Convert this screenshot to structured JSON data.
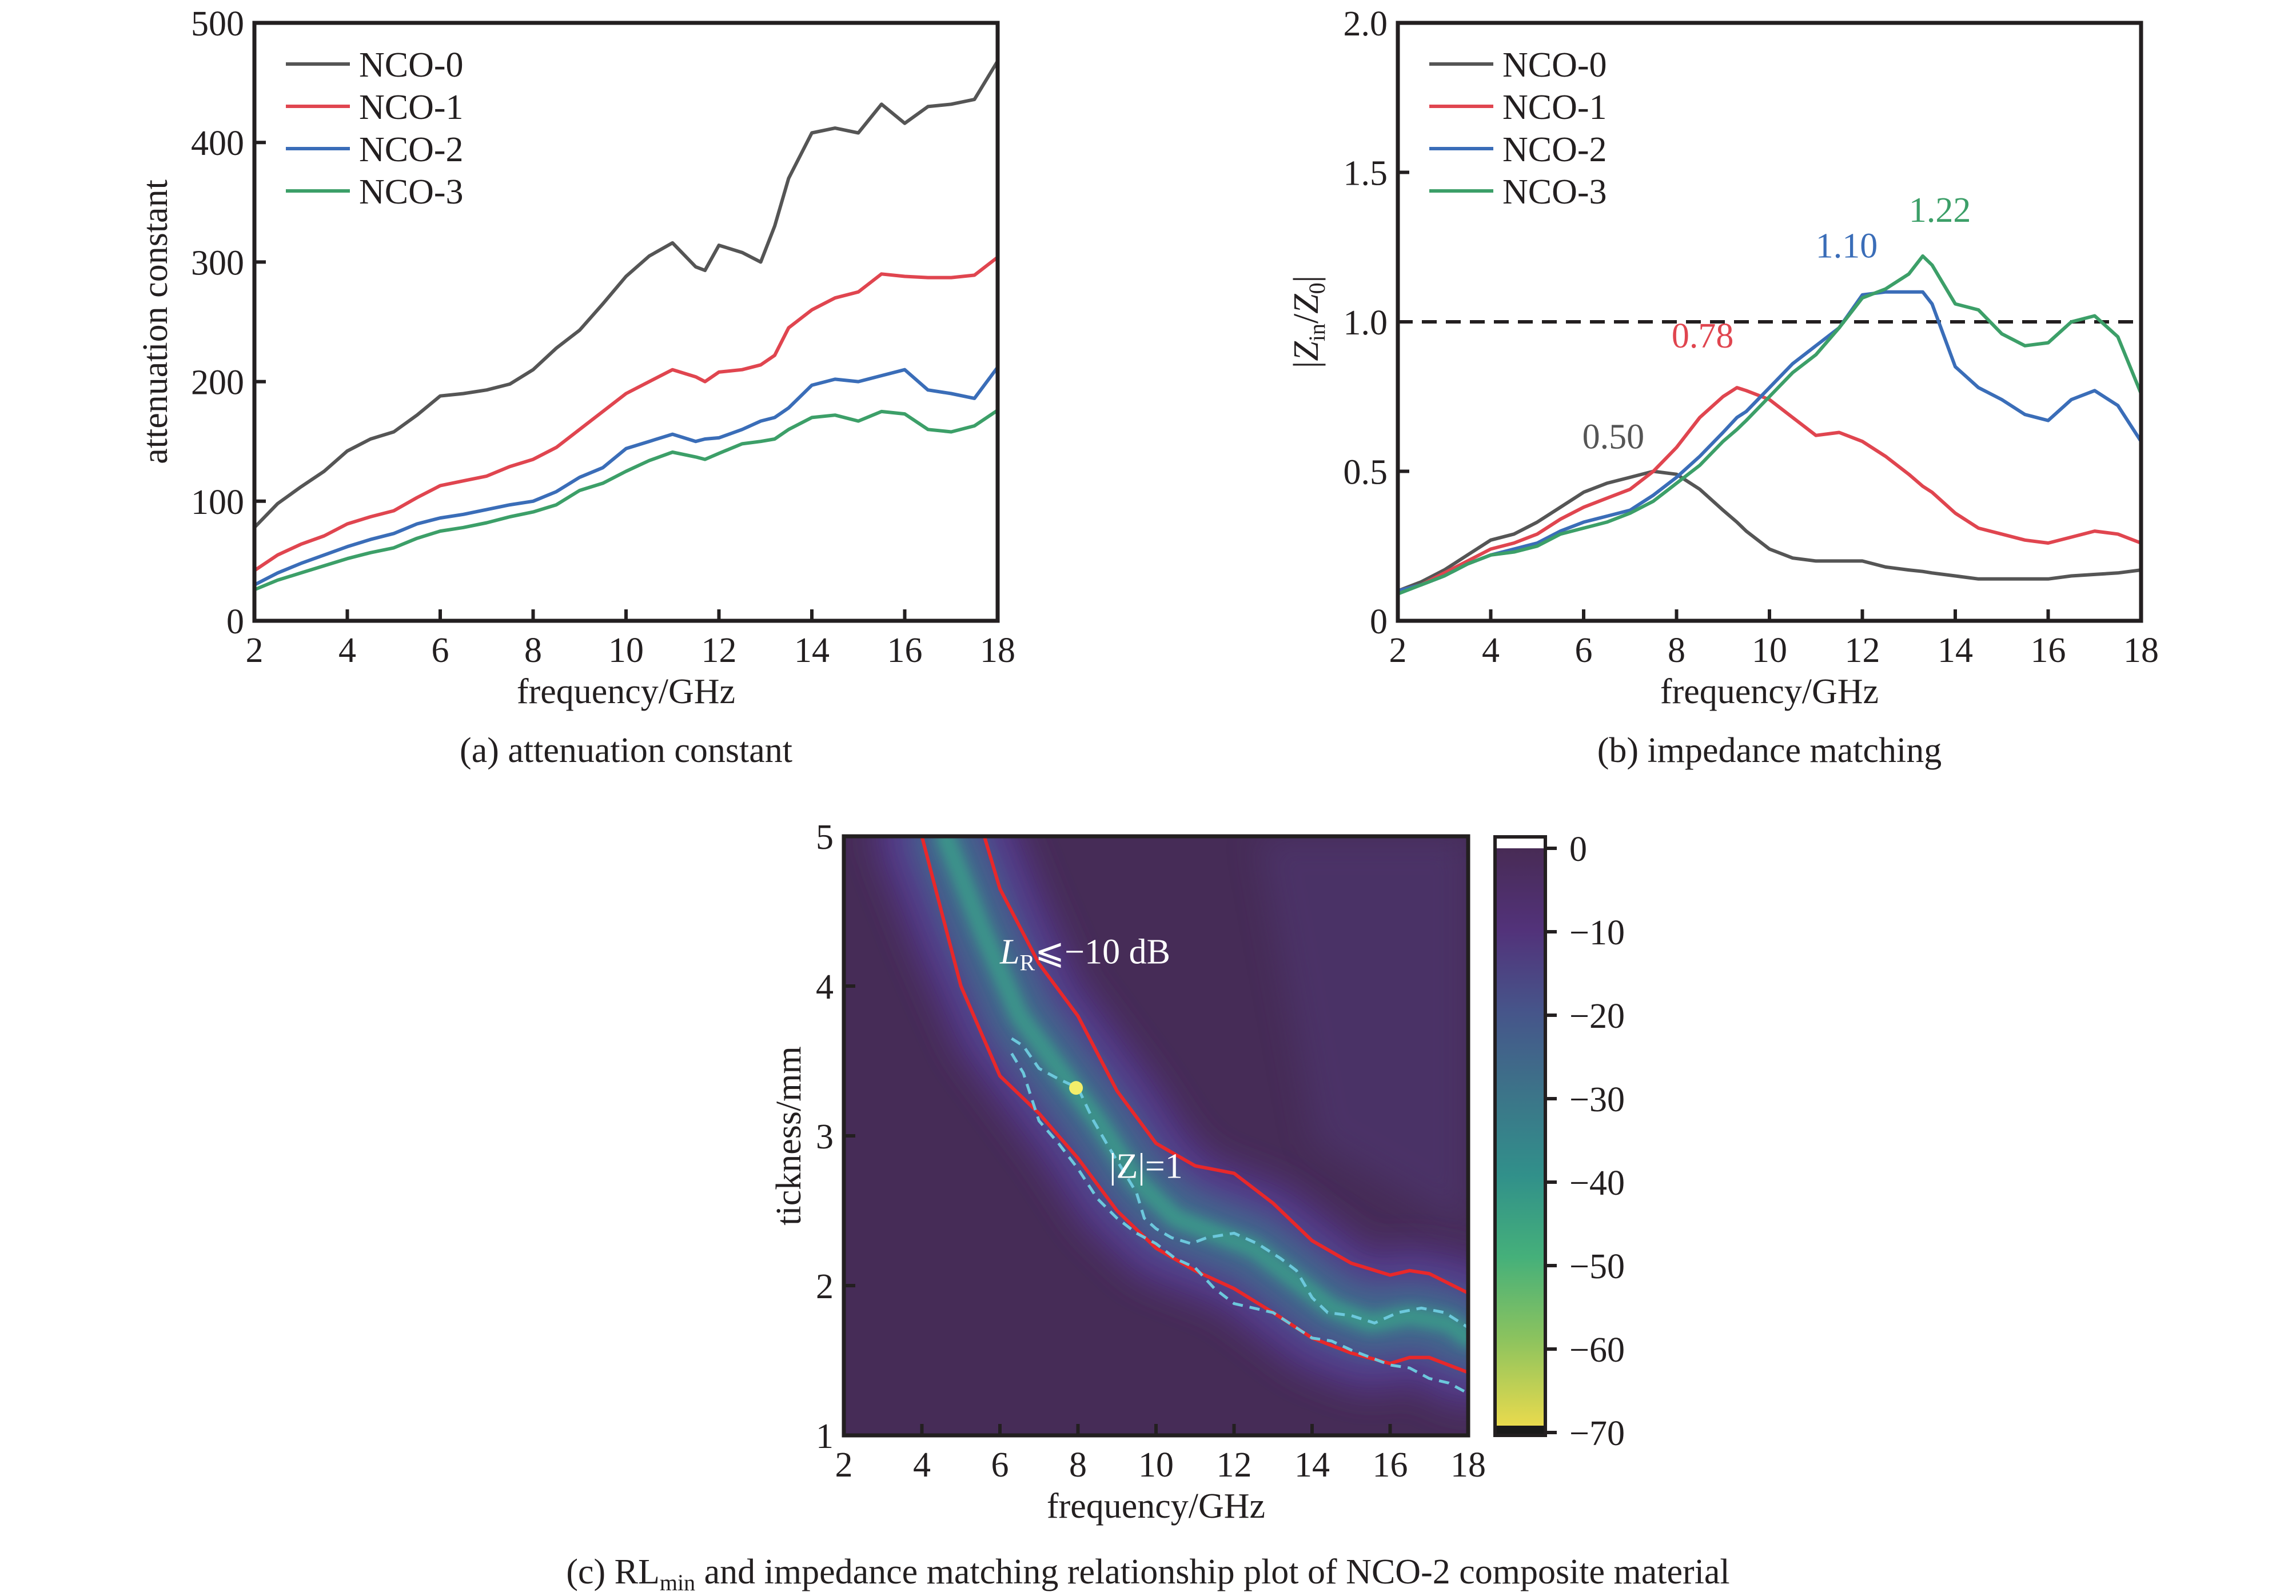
{
  "figure": {
    "captions": {
      "a": "(a) attenuation constant",
      "b": "(b) impedance matching",
      "c_prefix": "(c) RL",
      "c_sub": "min",
      "c_suffix": " and impedance matching relationship plot of NCO-2 composite material"
    }
  },
  "colors": {
    "NCO-0": "#555555",
    "NCO-1": "#e0454f",
    "NCO-2": "#3a6db8",
    "NCO-3": "#3c9f68",
    "axis": "#231f20",
    "rl_contour": "#e8282a",
    "z_contour": "#6cc8dc",
    "rl_min_marker": "#f2ee6a"
  },
  "chart_data": [
    {
      "id": "a",
      "type": "line",
      "title": "(a) attenuation constant",
      "xlabel": "frequency/GHz",
      "ylabel": "attenuation constant",
      "xlim": [
        2,
        18
      ],
      "ylim": [
        0,
        500
      ],
      "xticks": [
        2,
        4,
        6,
        8,
        10,
        12,
        14,
        16,
        18
      ],
      "yticks": [
        0,
        100,
        200,
        300,
        400,
        500
      ],
      "grid": false,
      "legend": {
        "placement": "top-left",
        "entries": [
          "NCO-0",
          "NCO-1",
          "NCO-2",
          "NCO-3"
        ]
      },
      "x": [
        2,
        2.5,
        3,
        3.5,
        4,
        4.5,
        5,
        5.5,
        6,
        6.5,
        7,
        7.5,
        8,
        8.5,
        9,
        9.5,
        10,
        10.5,
        11,
        11.5,
        11.7,
        12,
        12.5,
        12.9,
        13.2,
        13.5,
        14,
        14.5,
        15,
        15.5,
        16,
        16.5,
        17,
        17.5,
        18
      ],
      "series": [
        {
          "name": "NCO-0",
          "values": [
            78,
            98,
            112,
            125,
            142,
            152,
            158,
            172,
            188,
            190,
            193,
            198,
            210,
            228,
            243,
            265,
            288,
            305,
            316,
            296,
            293,
            314,
            308,
            300,
            330,
            370,
            408,
            412,
            408,
            432,
            416,
            430,
            432,
            436,
            468
          ]
        },
        {
          "name": "NCO-1",
          "values": [
            42,
            55,
            64,
            71,
            81,
            87,
            92,
            103,
            113,
            117,
            121,
            129,
            135,
            145,
            160,
            175,
            190,
            200,
            210,
            204,
            200,
            208,
            210,
            214,
            222,
            245,
            260,
            270,
            275,
            290,
            288,
            287,
            287,
            289,
            304
          ]
        },
        {
          "name": "NCO-2",
          "values": [
            30,
            40,
            48,
            55,
            62,
            68,
            73,
            81,
            86,
            89,
            93,
            97,
            100,
            108,
            120,
            128,
            144,
            150,
            156,
            150,
            152,
            153,
            160,
            167,
            170,
            178,
            197,
            202,
            200,
            205,
            210,
            193,
            190,
            186,
            212
          ]
        },
        {
          "name": "NCO-3",
          "values": [
            26,
            34,
            40,
            46,
            52,
            57,
            61,
            69,
            75,
            78,
            82,
            87,
            91,
            97,
            109,
            115,
            125,
            134,
            141,
            137,
            135,
            140,
            148,
            150,
            152,
            160,
            170,
            172,
            167,
            175,
            173,
            160,
            158,
            163,
            176
          ]
        }
      ]
    },
    {
      "id": "b",
      "type": "line",
      "title": "(b) impedance matching",
      "xlabel": "frequency/GHz",
      "ylabel": "|Zin/Z0|",
      "ylabel_parts": {
        "open": "|",
        "main1": "Z",
        "sub1": "in",
        "slash": "/",
        "main2": "Z",
        "sub2": "0",
        "close": "|"
      },
      "xlim": [
        2,
        18
      ],
      "ylim": [
        0,
        2.0
      ],
      "xticks": [
        2,
        4,
        6,
        8,
        10,
        12,
        14,
        16,
        18
      ],
      "yticks": [
        0,
        0.5,
        1.0,
        1.5,
        2.0
      ],
      "ytick_labels": [
        "0",
        "0.5",
        "1.0",
        "1.5",
        "2.0"
      ],
      "grid": false,
      "reference_line": {
        "y": 1.0,
        "style": "dashed"
      },
      "legend": {
        "placement": "top-left",
        "entries": [
          "NCO-0",
          "NCO-1",
          "NCO-2",
          "NCO-3"
        ]
      },
      "x": [
        2,
        2.5,
        3,
        3.5,
        4,
        4.5,
        5,
        5.5,
        6,
        6.5,
        7,
        7.5,
        8,
        8.5,
        9,
        9.3,
        9.5,
        10,
        10.5,
        11,
        11.5,
        12,
        12.5,
        13,
        13.3,
        13.5,
        14,
        14.5,
        15,
        15.5,
        16,
        16.5,
        17,
        17.5,
        18
      ],
      "series": [
        {
          "name": "NCO-0",
          "values": [
            0.1,
            0.13,
            0.17,
            0.22,
            0.27,
            0.29,
            0.33,
            0.38,
            0.43,
            0.46,
            0.48,
            0.5,
            0.49,
            0.44,
            0.37,
            0.33,
            0.3,
            0.24,
            0.21,
            0.2,
            0.2,
            0.2,
            0.18,
            0.17,
            0.165,
            0.16,
            0.15,
            0.14,
            0.14,
            0.14,
            0.14,
            0.15,
            0.155,
            0.16,
            0.17
          ]
        },
        {
          "name": "NCO-1",
          "values": [
            0.1,
            0.12,
            0.16,
            0.2,
            0.24,
            0.26,
            0.29,
            0.34,
            0.38,
            0.41,
            0.44,
            0.5,
            0.58,
            0.68,
            0.75,
            0.78,
            0.77,
            0.74,
            0.68,
            0.62,
            0.63,
            0.6,
            0.55,
            0.49,
            0.45,
            0.43,
            0.36,
            0.31,
            0.29,
            0.27,
            0.26,
            0.28,
            0.3,
            0.29,
            0.26
          ]
        },
        {
          "name": "NCO-2",
          "values": [
            0.1,
            0.12,
            0.15,
            0.19,
            0.22,
            0.24,
            0.26,
            0.3,
            0.33,
            0.35,
            0.37,
            0.42,
            0.48,
            0.55,
            0.63,
            0.68,
            0.7,
            0.78,
            0.86,
            0.92,
            0.98,
            1.09,
            1.1,
            1.1,
            1.1,
            1.06,
            0.85,
            0.78,
            0.74,
            0.69,
            0.67,
            0.74,
            0.77,
            0.72,
            0.6
          ]
        },
        {
          "name": "NCO-3",
          "values": [
            0.09,
            0.12,
            0.15,
            0.19,
            0.22,
            0.23,
            0.25,
            0.29,
            0.31,
            0.33,
            0.36,
            0.4,
            0.46,
            0.52,
            0.6,
            0.64,
            0.67,
            0.75,
            0.83,
            0.89,
            0.98,
            1.08,
            1.11,
            1.16,
            1.22,
            1.19,
            1.06,
            1.04,
            0.96,
            0.92,
            0.93,
            1.0,
            1.02,
            0.95,
            0.76
          ]
        }
      ],
      "annotations": [
        {
          "text": "0.50",
          "series": "NCO-0",
          "x": 7.5,
          "y": 0.5
        },
        {
          "text": "0.78",
          "series": "NCO-1",
          "x": 9.3,
          "y": 0.78
        },
        {
          "text": "1.10",
          "series": "NCO-2",
          "x": 12.4,
          "y": 1.1
        },
        {
          "text": "1.22",
          "series": "NCO-3",
          "x": 13.3,
          "y": 1.22
        }
      ]
    },
    {
      "id": "c",
      "type": "heatmap",
      "title": "(c) RLmin and impedance matching relationship plot of NCO-2 composite material",
      "xlabel": "frequency/GHz",
      "ylabel": "tickness/mm",
      "xlim": [
        2,
        18
      ],
      "ylim": [
        1,
        5
      ],
      "xticks": [
        2,
        4,
        6,
        8,
        10,
        12,
        14,
        16,
        18
      ],
      "yticks": [
        1,
        2,
        3,
        4,
        5
      ],
      "colorbar": {
        "range": [
          -70,
          0
        ],
        "ticks": [
          0,
          -10,
          -20,
          -30,
          -40,
          -50,
          -60,
          -70
        ],
        "tick_labels": [
          "0",
          "−10",
          "−20",
          "−30",
          "−40",
          "−50",
          "−60",
          "−70"
        ],
        "colormap": "viridis"
      },
      "absorption_band_center": {
        "x": [
          4.6,
          5.5,
          6.5,
          7.5,
          8.5,
          9.5,
          10.5,
          11.5,
          12.5,
          13.5,
          14.5,
          15.5,
          16.5,
          17.5,
          18
        ],
        "y": [
          5.0,
          4.4,
          3.8,
          3.45,
          3.1,
          2.7,
          2.45,
          2.35,
          2.25,
          2.05,
          1.85,
          1.75,
          1.8,
          1.75,
          1.65
        ]
      },
      "rl_contour_minus10dB": {
        "label": "LR≤−10 dB",
        "upper": {
          "x": [
            5.6,
            6.0,
            7.0,
            8.0,
            9.0,
            10.0,
            11.0,
            12.0,
            13.0,
            14.0,
            15.0,
            16.0,
            16.5,
            17.0,
            18.0
          ],
          "y": [
            5.0,
            4.65,
            4.15,
            3.8,
            3.3,
            2.95,
            2.8,
            2.75,
            2.55,
            2.3,
            2.15,
            2.07,
            2.1,
            2.08,
            1.95
          ]
        },
        "lower": {
          "x": [
            4.0,
            4.5,
            5.0,
            6.0,
            7.0,
            8.0,
            9.0,
            10.0,
            11.0,
            12.0,
            13.0,
            14.0,
            15.0,
            16.0,
            16.5,
            17.0,
            18.0
          ],
          "y": [
            5.0,
            4.5,
            4.0,
            3.4,
            3.15,
            2.85,
            2.5,
            2.25,
            2.1,
            1.98,
            1.82,
            1.65,
            1.55,
            1.48,
            1.52,
            1.52,
            1.42
          ]
        }
      },
      "z_equals_1_contour": {
        "label": "|Z|=1",
        "segments": [
          {
            "x": [
              6.3,
              6.6,
              7.0,
              7.5,
              8.0,
              8.4,
              8.8,
              9.2,
              9.5,
              9.7,
              10.0,
              10.4,
              10.9,
              11.3,
              12.0,
              12.6,
              13.2,
              13.6,
              14.0,
              14.4,
              15.0,
              15.6,
              16.2,
              16.8,
              17.4,
              18.0
            ],
            "y": [
              3.65,
              3.6,
              3.45,
              3.38,
              3.32,
              3.1,
              2.92,
              2.75,
              2.62,
              2.45,
              2.38,
              2.32,
              2.28,
              2.32,
              2.35,
              2.28,
              2.18,
              2.1,
              1.92,
              1.82,
              1.8,
              1.75,
              1.82,
              1.85,
              1.82,
              1.72
            ]
          },
          {
            "x": [
              6.3,
              6.6,
              7.0,
              7.5,
              8.0,
              8.5,
              9.0,
              9.5,
              10.0,
              10.5,
              11.0,
              11.5,
              12.0,
              13.0,
              14.0,
              14.5,
              15.0,
              15.5,
              16.0,
              16.5,
              17.0,
              17.5,
              18.0
            ],
            "y": [
              3.55,
              3.42,
              3.1,
              2.95,
              2.78,
              2.58,
              2.45,
              2.35,
              2.28,
              2.18,
              2.12,
              1.98,
              1.88,
              1.82,
              1.65,
              1.63,
              1.57,
              1.52,
              1.47,
              1.45,
              1.38,
              1.35,
              1.28
            ]
          }
        ]
      },
      "rl_min_point": {
        "x": 7.95,
        "y": 3.32,
        "value": -70
      },
      "annotations": [
        {
          "text_main": "L",
          "text_sub": "R",
          "text_rest": "⩽−10 dB",
          "x": 6.0,
          "y": 4.15
        },
        {
          "text": "|Z|=1",
          "x": 8.8,
          "y": 2.72
        }
      ]
    }
  ]
}
